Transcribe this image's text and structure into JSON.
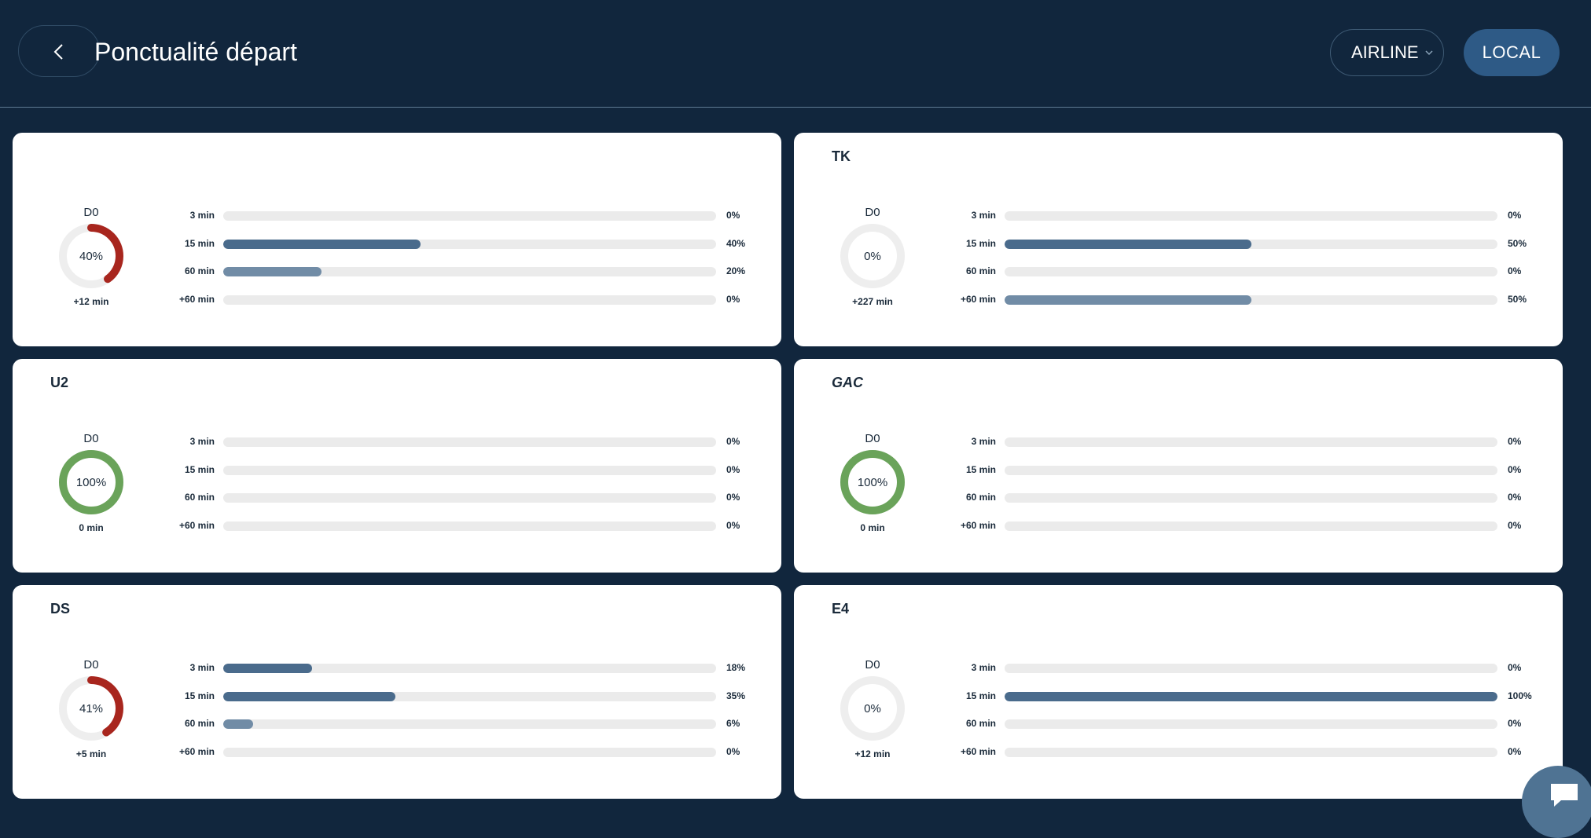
{
  "header": {
    "title": "Ponctualité départ",
    "airline_select": "AIRLINE",
    "local_button": "LOCAL"
  },
  "colors": {
    "background": "#11263d",
    "late": "#a8261e",
    "on_time": "#6aa35a",
    "bar_dark": "#4a6b8c",
    "bar_light": "#718ca6",
    "track": "#ebebeb"
  },
  "icons": {
    "back": "chevron-left-icon",
    "dropdown": "chevron-down-icon",
    "chat": "chat-icon"
  },
  "cards": [
    {
      "title": "",
      "italic": false,
      "day": "D0",
      "percent": "40%",
      "percent_value": 40,
      "ring_color": "late",
      "delay": "+12 min",
      "rows": [
        {
          "label": "3 min",
          "pct": "0%",
          "value": 0,
          "color": "bar_dark"
        },
        {
          "label": "15 min",
          "pct": "40%",
          "value": 40,
          "color": "bar_dark"
        },
        {
          "label": "60 min",
          "pct": "20%",
          "value": 20,
          "color": "bar_light"
        },
        {
          "label": "+60 min",
          "pct": "0%",
          "value": 0,
          "color": "bar_light"
        }
      ]
    },
    {
      "title": "TK",
      "italic": false,
      "day": "D0",
      "percent": "0%",
      "percent_value": 0,
      "ring_color": "late",
      "delay": "+227 min",
      "rows": [
        {
          "label": "3 min",
          "pct": "0%",
          "value": 0,
          "color": "bar_dark"
        },
        {
          "label": "15 min",
          "pct": "50%",
          "value": 50,
          "color": "bar_dark"
        },
        {
          "label": "60 min",
          "pct": "0%",
          "value": 0,
          "color": "bar_light"
        },
        {
          "label": "+60 min",
          "pct": "50%",
          "value": 50,
          "color": "bar_light"
        }
      ]
    },
    {
      "title": "U2",
      "italic": false,
      "day": "D0",
      "percent": "100%",
      "percent_value": 100,
      "ring_color": "on_time",
      "delay": "0 min",
      "rows": [
        {
          "label": "3 min",
          "pct": "0%",
          "value": 0,
          "color": "bar_dark"
        },
        {
          "label": "15 min",
          "pct": "0%",
          "value": 0,
          "color": "bar_dark"
        },
        {
          "label": "60 min",
          "pct": "0%",
          "value": 0,
          "color": "bar_light"
        },
        {
          "label": "+60 min",
          "pct": "0%",
          "value": 0,
          "color": "bar_light"
        }
      ]
    },
    {
      "title": "GAC",
      "italic": true,
      "day": "D0",
      "percent": "100%",
      "percent_value": 100,
      "ring_color": "on_time",
      "delay": "0 min",
      "rows": [
        {
          "label": "3 min",
          "pct": "0%",
          "value": 0,
          "color": "bar_dark"
        },
        {
          "label": "15 min",
          "pct": "0%",
          "value": 0,
          "color": "bar_dark"
        },
        {
          "label": "60 min",
          "pct": "0%",
          "value": 0,
          "color": "bar_light"
        },
        {
          "label": "+60 min",
          "pct": "0%",
          "value": 0,
          "color": "bar_light"
        }
      ]
    },
    {
      "title": "DS",
      "italic": false,
      "day": "D0",
      "percent": "41%",
      "percent_value": 41,
      "ring_color": "late",
      "delay": "+5 min",
      "rows": [
        {
          "label": "3 min",
          "pct": "18%",
          "value": 18,
          "color": "bar_dark"
        },
        {
          "label": "15 min",
          "pct": "35%",
          "value": 35,
          "color": "bar_dark"
        },
        {
          "label": "60 min",
          "pct": "6%",
          "value": 6,
          "color": "bar_light"
        },
        {
          "label": "+60 min",
          "pct": "0%",
          "value": 0,
          "color": "bar_light"
        }
      ]
    },
    {
      "title": "E4",
      "italic": false,
      "day": "D0",
      "percent": "0%",
      "percent_value": 0,
      "ring_color": "late",
      "delay": "+12 min",
      "rows": [
        {
          "label": "3 min",
          "pct": "0%",
          "value": 0,
          "color": "bar_dark"
        },
        {
          "label": "15 min",
          "pct": "100%",
          "value": 100,
          "color": "bar_dark"
        },
        {
          "label": "60 min",
          "pct": "0%",
          "value": 0,
          "color": "bar_light"
        },
        {
          "label": "+60 min",
          "pct": "0%",
          "value": 0,
          "color": "bar_light"
        }
      ]
    }
  ]
}
